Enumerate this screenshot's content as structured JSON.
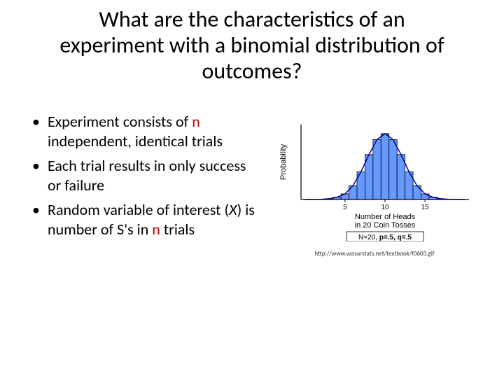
{
  "title": "What are the characteristics of an experiment with a binomial distribution of outcomes?",
  "bullets": [
    {
      "pre": "Experiment consists of ",
      "n": "n",
      "post": " independent, identical trials"
    },
    {
      "pre": "Each trial results in only success or failure",
      "n": "",
      "post": ""
    },
    {
      "pre": "Random variable of interest (",
      "x": "X",
      "mid": ") is number of S's in ",
      "n": "n",
      "post": " trials"
    }
  ],
  "chart": {
    "type": "histogram",
    "ylabel": "Probability",
    "xlabel_line1": "Number of Heads",
    "xlabel_line2": "in 20 Coin Tosses",
    "xticks": [
      5,
      10,
      15
    ],
    "bar_color": "#6699ff",
    "bar_border": "#000000",
    "curve_color": "#000099",
    "axis_color": "#000000",
    "bg_color": "#ffffff",
    "n_bars": 21,
    "values": [
      0,
      0.0001,
      0.0005,
      0.002,
      0.006,
      0.015,
      0.037,
      0.074,
      0.12,
      0.16,
      0.176,
      0.16,
      0.12,
      0.074,
      0.037,
      0.015,
      0.006,
      0.002,
      0.0005,
      0.0001,
      0
    ],
    "ymax": 0.2,
    "params_box": {
      "N": "N=20, ",
      "p": "p=.5, ",
      "q": "q=.5"
    }
  },
  "citation": "http://www.vassarstats.net/textbook/f0603.gif"
}
